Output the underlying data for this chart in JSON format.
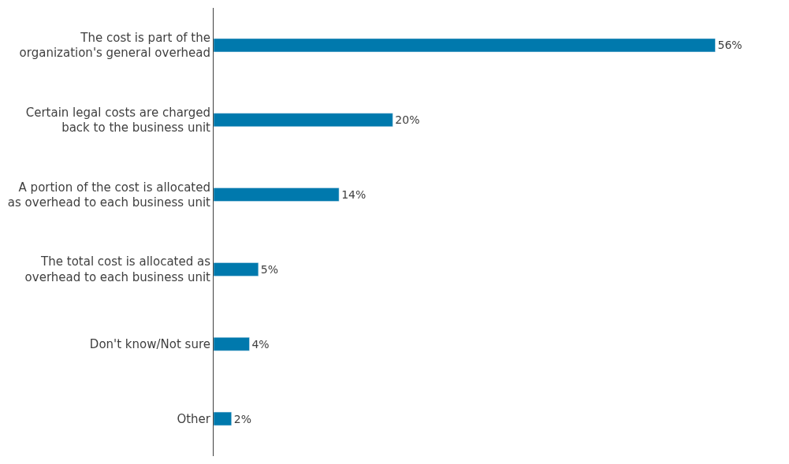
{
  "chart_data": {
    "type": "bar",
    "orientation": "horizontal",
    "categories": [
      "The cost is part of the organization's general overhead",
      "Certain legal costs are charged back to the business unit",
      "A portion of the cost is allocated as overhead to each business unit",
      "The total cost is allocated as overhead to each business unit",
      "Don't know/Not sure",
      "Other"
    ],
    "values": [
      56,
      20,
      14,
      5,
      4,
      2
    ],
    "value_labels": [
      "56%",
      "20%",
      "14%",
      "5%",
      "4%",
      "2%"
    ],
    "color": "#0079ad"
  }
}
